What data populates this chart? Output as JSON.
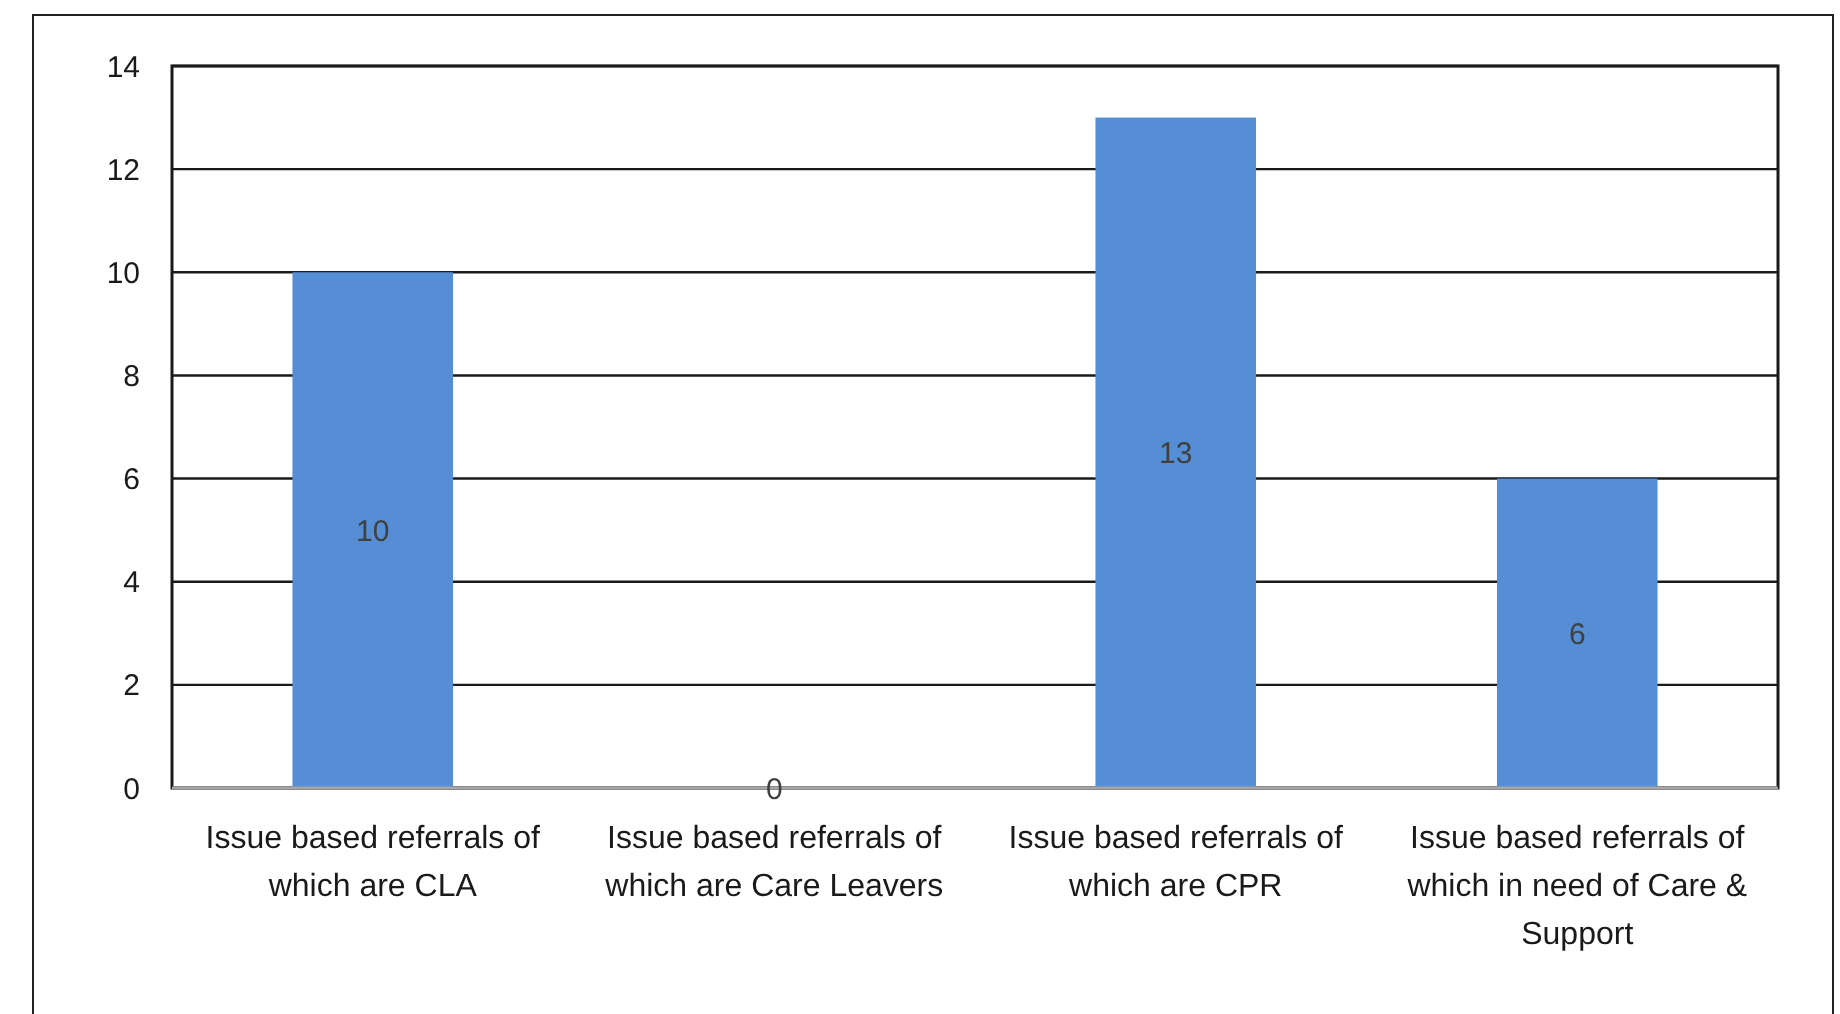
{
  "chart_data": {
    "type": "bar",
    "categories": [
      "Issue based referrals of which are CLA",
      "Issue based referrals of which are Care Leavers",
      "Issue based referrals of which are CPR",
      "Issue based referrals of which in need of Care & Support"
    ],
    "values": [
      10,
      0,
      13,
      6
    ],
    "color": "#558ed5",
    "ylim": [
      0,
      14
    ],
    "yticks": [
      0,
      2,
      4,
      6,
      8,
      10,
      12,
      14
    ],
    "grid": "y",
    "data_labels": true
  }
}
